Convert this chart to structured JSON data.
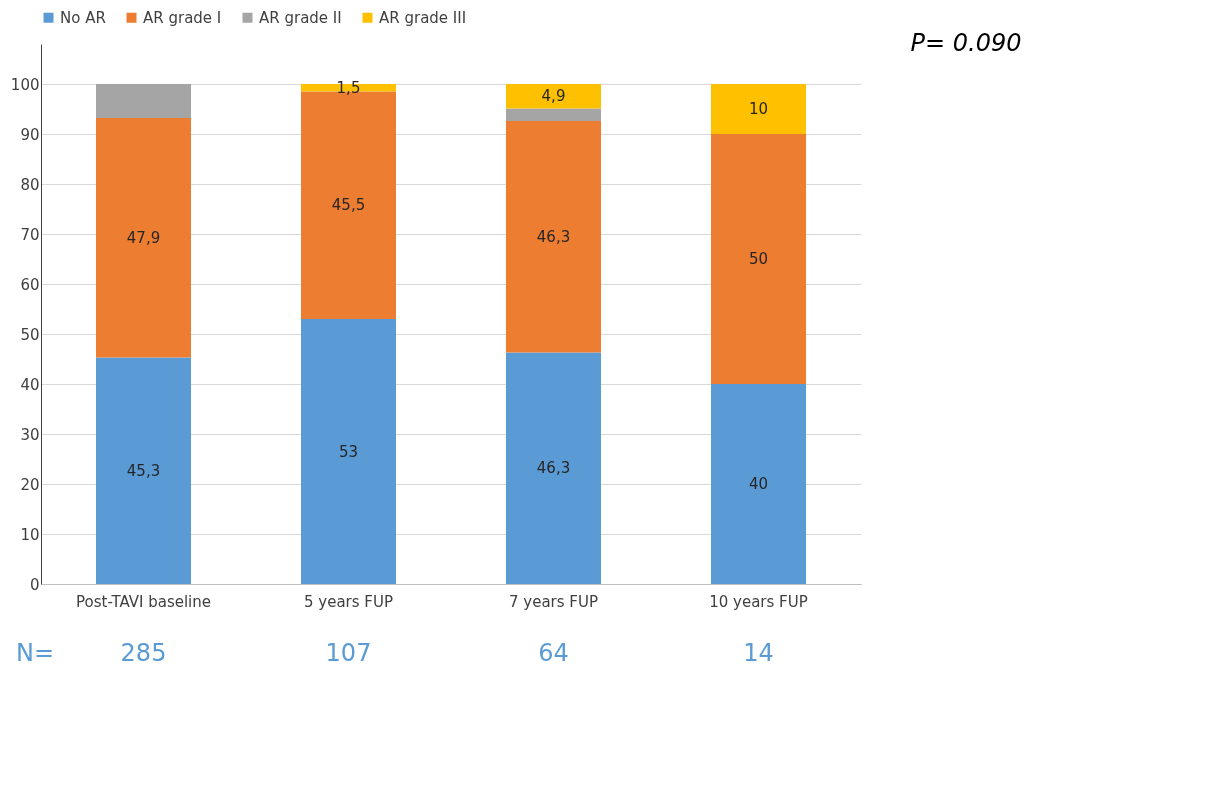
{
  "chart_data": {
    "type": "bar",
    "stacked": true,
    "categories": [
      "Post-TAVI baseline",
      "5 years FUP",
      "7 years FUP",
      "10 years FUP"
    ],
    "series": [
      {
        "name": "No AR",
        "color": "#5b9bd5",
        "values": [
          45.3,
          53,
          46.3,
          40
        ],
        "value_labels": [
          "45,3",
          "53",
          "46,3",
          "40"
        ]
      },
      {
        "name": "AR grade I",
        "color": "#ed7d31",
        "values": [
          47.9,
          45.5,
          46.3,
          50
        ],
        "value_labels": [
          "47,9",
          "45,5",
          "46,3",
          "50"
        ]
      },
      {
        "name": "AR grade II",
        "color": "#a5a5a5",
        "values": [
          6.8,
          0,
          2.5,
          0
        ],
        "value_labels": [
          null,
          null,
          null,
          null
        ]
      },
      {
        "name": "AR grade III",
        "color": "#ffc000",
        "values": [
          0,
          1.5,
          4.9,
          10
        ],
        "value_labels": [
          null,
          "1,5",
          "4,9",
          "10"
        ]
      }
    ],
    "ylim": [
      0,
      108
    ],
    "yticks": [
      0,
      10,
      20,
      30,
      40,
      50,
      60,
      70,
      80,
      90,
      100
    ],
    "grid": "y",
    "legend": "top",
    "annotations": [
      "P= 0.090",
      "N=",
      "285",
      "107",
      "64",
      "14"
    ]
  }
}
